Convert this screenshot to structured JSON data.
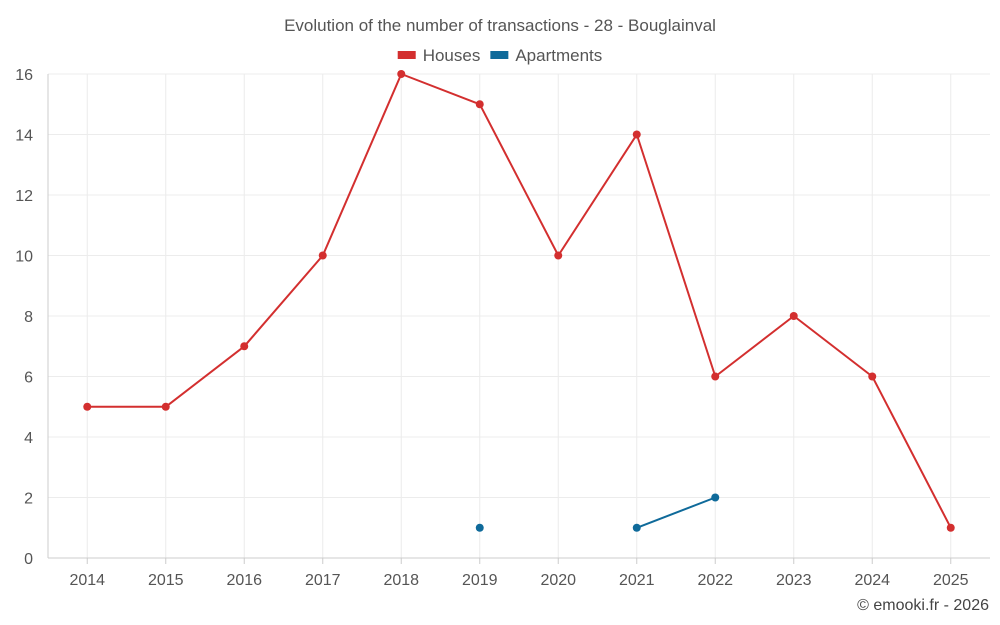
{
  "chart_data": {
    "type": "line",
    "title": "Evolution of the number of transactions - 28 - Bouglainval",
    "categories": [
      "2014",
      "2015",
      "2016",
      "2017",
      "2018",
      "2019",
      "2020",
      "2021",
      "2022",
      "2023",
      "2024",
      "2025"
    ],
    "series": [
      {
        "name": "Houses",
        "color": "#d32f2f",
        "values": [
          5,
          5,
          7,
          10,
          16,
          15,
          10,
          14,
          6,
          8,
          6,
          1
        ]
      },
      {
        "name": "Apartments",
        "color": "#0f6a9a",
        "values": [
          null,
          null,
          null,
          null,
          null,
          1,
          null,
          1,
          2,
          null,
          null,
          null
        ]
      }
    ],
    "ylim": [
      0,
      16
    ],
    "yticks": [
      0,
      2,
      4,
      6,
      8,
      10,
      12,
      14,
      16
    ],
    "xlabel": "",
    "ylabel": "",
    "grid": true,
    "legend": "top-center"
  },
  "credit": "© emooki.fr - 2026"
}
